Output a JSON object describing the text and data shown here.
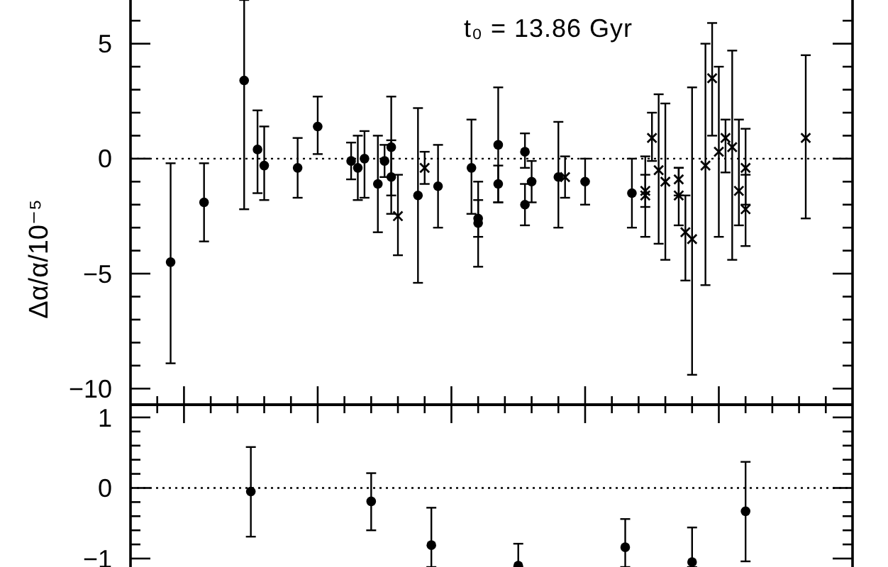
{
  "chart_data": [
    {
      "type": "scatter",
      "ylabel": "Δα/α/10⁻⁵",
      "annotations": [
        "t₀ = 13.86 Gyr"
      ],
      "tick_labels": "y",
      "categories": [
        null,
        null,
        null,
        null,
        null,
        null,
        null,
        null,
        null,
        null,
        null,
        null,
        null,
        null,
        null,
        null,
        null,
        null,
        null,
        null,
        null,
        null,
        null,
        null,
        null,
        null,
        null,
        null,
        null,
        null,
        null,
        null,
        null,
        null,
        null,
        null,
        null,
        null,
        null,
        null,
        null,
        null,
        null,
        null,
        null,
        null,
        null,
        null,
        null,
        null,
        null,
        null,
        null,
        null,
        null,
        null,
        null,
        null,
        null,
        null,
        null,
        null,
        null,
        null,
        null,
        null,
        null,
        null,
        null,
        null,
        null,
        null,
        null,
        null,
        null,
        null,
        null,
        null,
        null,
        null,
        null,
        null,
        null,
        null,
        null,
        null,
        null,
        null,
        null,
        null,
        null,
        null,
        null,
        null,
        null,
        null,
        null,
        null,
        null,
        null,
        null,
        null,
        null,
        null,
        null,
        null,
        null,
        null,
        null
      ],
      "ylim": [
        -10.7,
        6.9
      ],
      "yticks": [
        -10,
        {
          "value": -9,
          "label": null
        },
        {
          "value": -8,
          "label": null
        },
        {
          "value": -7,
          "label": null
        },
        {
          "value": -6,
          "label": null
        },
        -5,
        {
          "value": -4,
          "label": null
        },
        {
          "value": -3,
          "label": null
        },
        {
          "value": -2,
          "label": null
        },
        {
          "value": -1,
          "label": null
        },
        0,
        {
          "value": 1,
          "label": null
        },
        {
          "value": 2,
          "label": null
        },
        {
          "value": 3,
          "label": null
        },
        {
          "value": 4,
          "label": null
        },
        5,
        {
          "value": 6,
          "label": null
        }
      ],
      "ref_lines": [
        {
          "axis": "y",
          "value": 0,
          "line_style": "dotted"
        }
      ],
      "series": [
        {
          "color": "#000000",
          "marker": "circle",
          "values": [
            null,
            null,
            null,
            null,
            null,
            null,
            -4.5,
            null,
            null,
            null,
            null,
            -1.9,
            null,
            null,
            null,
            null,
            null,
            3.4,
            null,
            0.4,
            -0.3,
            null,
            null,
            null,
            null,
            -0.4,
            null,
            null,
            1.4,
            null,
            null,
            null,
            null,
            -0.1,
            -0.4,
            0.0,
            null,
            -1.1,
            -0.1,
            -0.8,
            null,
            null,
            null,
            -1.6,
            null,
            null,
            -1.2,
            null,
            null,
            null,
            null,
            -0.4,
            -2.8,
            null,
            null,
            0.6,
            null,
            null,
            null,
            0.3,
            -1.0,
            null,
            null,
            null,
            -0.8,
            null,
            null,
            null,
            -1.0,
            null,
            null,
            null,
            null,
            null,
            null,
            -1.5,
            null,
            null,
            null,
            null,
            null,
            null,
            null,
            null,
            null,
            null,
            null,
            null,
            null,
            null,
            null,
            null,
            null,
            null,
            null,
            null,
            null,
            null,
            null,
            null,
            null,
            null,
            null,
            null,
            null,
            null,
            null,
            null,
            null
          ],
          "errors": [
            null,
            null,
            null,
            null,
            null,
            null,
            [
              -8.9,
              -0.2
            ],
            null,
            null,
            null,
            null,
            [
              -3.6,
              -0.2
            ],
            null,
            null,
            null,
            null,
            null,
            [
              -2.2,
              6.9
            ],
            null,
            [
              -1.5,
              2.1
            ],
            [
              -1.8,
              1.4
            ],
            null,
            null,
            null,
            null,
            [
              -1.7,
              0.9
            ],
            null,
            null,
            [
              0.2,
              2.7
            ],
            null,
            null,
            null,
            null,
            [
              -0.9,
              0.7
            ],
            [
              -1.8,
              1.0
            ],
            [
              -1.7,
              1.2
            ],
            null,
            [
              -3.2,
              1.0
            ],
            [
              -0.8,
              0.6
            ],
            [
              -2.4,
              0.8
            ],
            null,
            null,
            null,
            [
              -5.4,
              2.2
            ],
            null,
            null,
            [
              -3.0,
              0.6
            ],
            null,
            null,
            null,
            null,
            [
              -2.4,
              1.7
            ],
            [
              -4.7,
              -1.0
            ],
            null,
            null,
            [
              -1.9,
              3.1
            ],
            null,
            null,
            null,
            [
              -0.4,
              1.1
            ],
            [
              -1.9,
              -0.1
            ],
            null,
            null,
            null,
            [
              -3.0,
              1.6
            ],
            null,
            null,
            null,
            [
              -2.0,
              0.0
            ],
            null,
            null,
            null,
            null,
            null,
            null,
            [
              -3.0,
              0.0
            ],
            null,
            null,
            null,
            null,
            null,
            null,
            null,
            null,
            null,
            null,
            null,
            null,
            null,
            null,
            null,
            null,
            null,
            null,
            null,
            null,
            null,
            null,
            null,
            null,
            null,
            null,
            null,
            null,
            null,
            null,
            null,
            null,
            null
          ]
        },
        {
          "color": "#000000",
          "marker": "circle",
          "values": [
            null,
            null,
            null,
            null,
            null,
            null,
            null,
            null,
            null,
            null,
            null,
            null,
            null,
            null,
            null,
            null,
            null,
            null,
            null,
            null,
            null,
            null,
            null,
            null,
            null,
            null,
            null,
            null,
            null,
            null,
            null,
            null,
            null,
            null,
            null,
            null,
            null,
            null,
            null,
            0.5,
            null,
            null,
            null,
            null,
            null,
            null,
            null,
            null,
            null,
            null,
            null,
            null,
            -2.6,
            null,
            null,
            -1.1,
            null,
            null,
            null,
            -2.0,
            null,
            null,
            null,
            null,
            null,
            null,
            null,
            null,
            null,
            null,
            null,
            null,
            null,
            null,
            null,
            null,
            null,
            null,
            null,
            null,
            null,
            null,
            null,
            null,
            null,
            null,
            null,
            null,
            null,
            null,
            null,
            null,
            null,
            null,
            null,
            null,
            null,
            null,
            null,
            null,
            null,
            null,
            null,
            null,
            null,
            null,
            null,
            null,
            null
          ],
          "errors": [
            null,
            null,
            null,
            null,
            null,
            null,
            null,
            null,
            null,
            null,
            null,
            null,
            null,
            null,
            null,
            null,
            null,
            null,
            null,
            null,
            null,
            null,
            null,
            null,
            null,
            null,
            null,
            null,
            null,
            null,
            null,
            null,
            null,
            null,
            null,
            null,
            null,
            null,
            null,
            [
              -1.6,
              2.7
            ],
            null,
            null,
            null,
            null,
            null,
            null,
            null,
            null,
            null,
            null,
            null,
            null,
            [
              -3.4,
              -1.8
            ],
            null,
            null,
            [
              -1.9,
              -0.3
            ],
            null,
            null,
            null,
            [
              -2.9,
              -1.1
            ],
            null,
            null,
            null,
            null,
            null,
            null,
            null,
            null,
            null,
            null,
            null,
            null,
            null,
            null,
            null,
            null,
            null,
            null,
            null,
            null,
            null,
            null,
            null,
            null,
            null,
            null,
            null,
            null,
            null,
            null,
            null,
            null,
            null,
            null,
            null,
            null,
            null,
            null,
            null,
            null,
            null,
            null,
            null,
            null,
            null,
            null,
            null,
            null,
            null
          ]
        },
        {
          "color": "#000000",
          "marker": "cross",
          "values": [
            null,
            null,
            null,
            null,
            null,
            null,
            null,
            null,
            null,
            null,
            null,
            null,
            null,
            null,
            null,
            null,
            null,
            null,
            null,
            null,
            null,
            null,
            null,
            null,
            null,
            null,
            null,
            null,
            null,
            null,
            null,
            null,
            null,
            null,
            null,
            null,
            null,
            null,
            null,
            null,
            -2.5,
            null,
            null,
            null,
            -0.4,
            null,
            null,
            null,
            null,
            null,
            null,
            null,
            null,
            null,
            null,
            null,
            null,
            null,
            null,
            null,
            null,
            null,
            null,
            null,
            null,
            -0.8,
            null,
            null,
            null,
            null,
            null,
            null,
            null,
            null,
            null,
            null,
            null,
            -1.4,
            0.9,
            -0.5,
            -1.0,
            null,
            -1.6,
            -3.2,
            null,
            null,
            -0.3,
            3.5,
            0.3,
            0.9,
            null,
            null,
            -0.4,
            null,
            null,
            null,
            null,
            null,
            null,
            null,
            null,
            0.9,
            null,
            null,
            null,
            null,
            null,
            null,
            null
          ],
          "errors": [
            null,
            null,
            null,
            null,
            null,
            null,
            null,
            null,
            null,
            null,
            null,
            null,
            null,
            null,
            null,
            null,
            null,
            null,
            null,
            null,
            null,
            null,
            null,
            null,
            null,
            null,
            null,
            null,
            null,
            null,
            null,
            null,
            null,
            null,
            null,
            null,
            null,
            null,
            null,
            null,
            [
              -4.2,
              -0.7
            ],
            null,
            null,
            null,
            [
              -1.1,
              0.3
            ],
            null,
            null,
            null,
            null,
            null,
            null,
            null,
            null,
            null,
            null,
            null,
            null,
            null,
            null,
            null,
            null,
            null,
            null,
            null,
            null,
            [
              -1.7,
              0.1
            ],
            null,
            null,
            null,
            null,
            null,
            null,
            null,
            null,
            null,
            null,
            null,
            [
              -3.4,
              0.1
            ],
            [
              -0.1,
              2.0
            ],
            [
              -3.7,
              2.8
            ],
            [
              -4.4,
              2.4
            ],
            null,
            [
              -2.9,
              -0.4
            ],
            [
              -5.3,
              -1.6
            ],
            null,
            null,
            [
              -5.5,
              5.0
            ],
            [
              1.0,
              5.9
            ],
            [
              -3.4,
              4.0
            ],
            [
              -0.6,
              1.7
            ],
            null,
            null,
            [
              -2.0,
              1.3
            ],
            null,
            null,
            null,
            null,
            null,
            null,
            null,
            null,
            [
              -2.6,
              4.5
            ],
            null,
            null,
            null,
            null,
            null,
            null,
            null
          ]
        },
        {
          "color": "#000000",
          "marker": "cross",
          "values": [
            null,
            null,
            null,
            null,
            null,
            null,
            null,
            null,
            null,
            null,
            null,
            null,
            null,
            null,
            null,
            null,
            null,
            null,
            null,
            null,
            null,
            null,
            null,
            null,
            null,
            null,
            null,
            null,
            null,
            null,
            null,
            null,
            null,
            null,
            null,
            null,
            null,
            null,
            null,
            null,
            null,
            null,
            null,
            null,
            null,
            null,
            null,
            null,
            null,
            null,
            null,
            null,
            null,
            null,
            null,
            null,
            null,
            null,
            null,
            null,
            null,
            null,
            null,
            null,
            null,
            null,
            null,
            null,
            null,
            null,
            null,
            null,
            null,
            null,
            null,
            null,
            null,
            -1.6,
            null,
            null,
            null,
            null,
            -0.9,
            null,
            -3.5,
            null,
            null,
            null,
            null,
            null,
            0.5,
            -1.4,
            -2.2,
            null,
            null,
            null,
            null,
            null,
            null,
            null,
            null,
            null,
            null,
            null,
            null,
            null,
            null,
            null,
            null
          ],
          "errors": [
            null,
            null,
            null,
            null,
            null,
            null,
            null,
            null,
            null,
            null,
            null,
            null,
            null,
            null,
            null,
            null,
            null,
            null,
            null,
            null,
            null,
            null,
            null,
            null,
            null,
            null,
            null,
            null,
            null,
            null,
            null,
            null,
            null,
            null,
            null,
            null,
            null,
            null,
            null,
            null,
            null,
            null,
            null,
            null,
            null,
            null,
            null,
            null,
            null,
            null,
            null,
            null,
            null,
            null,
            null,
            null,
            null,
            null,
            null,
            null,
            null,
            null,
            null,
            null,
            null,
            null,
            null,
            null,
            null,
            null,
            null,
            null,
            null,
            null,
            null,
            null,
            null,
            [
              -2.1,
              -0.7
            ],
            null,
            null,
            null,
            null,
            [
              -1.6,
              -0.4
            ],
            null,
            [
              -9.4,
              3.1
            ],
            null,
            null,
            null,
            null,
            null,
            [
              -4.4,
              4.7
            ],
            [
              -2.9,
              1.7
            ],
            [
              -3.8,
              -0.7
            ],
            null,
            null,
            null,
            null,
            null,
            null,
            null,
            null,
            null,
            null,
            null,
            null,
            null,
            null,
            null,
            null
          ]
        }
      ]
    },
    {
      "type": "scatter",
      "tick_labels": "y",
      "categories": [
        null,
        null,
        null,
        null,
        null,
        null,
        null,
        null,
        null,
        null,
        null,
        null,
        null,
        null,
        null,
        null,
        null,
        null,
        null,
        null,
        null,
        null,
        null,
        null,
        null,
        null,
        null,
        null,
        null,
        null,
        null,
        null,
        null,
        null,
        null,
        null,
        null,
        null,
        null,
        null,
        null,
        null,
        null,
        null,
        null,
        null,
        null,
        null,
        null,
        null,
        null,
        null,
        null,
        null,
        null,
        null,
        null,
        null,
        null,
        null,
        null,
        null,
        null,
        null,
        null,
        null,
        null,
        null,
        null,
        null,
        null,
        null,
        null,
        null,
        null,
        null,
        null,
        null,
        null,
        null,
        null,
        null,
        null,
        null,
        null,
        null,
        null,
        null,
        null,
        null,
        null,
        null,
        null,
        null,
        null,
        null,
        null,
        null,
        null,
        null,
        null,
        null,
        null,
        null,
        null,
        null,
        null,
        null,
        null
      ],
      "ylim": [
        -1.12,
        1.18
      ],
      "yticks": [
        -1,
        {
          "value": -0.8,
          "label": null
        },
        {
          "value": -0.6,
          "label": null
        },
        {
          "value": -0.4,
          "label": null
        },
        {
          "value": -0.2,
          "label": null
        },
        0,
        {
          "value": 0.2,
          "label": null
        },
        {
          "value": 0.4,
          "label": null
        },
        {
          "value": 0.6,
          "label": null
        },
        {
          "value": 0.8,
          "label": null
        },
        1
      ],
      "ref_lines": [
        {
          "axis": "y",
          "value": 0,
          "line_style": "dotted"
        }
      ],
      "series": [
        {
          "color": "#000000",
          "marker": "circle",
          "values": [
            null,
            null,
            null,
            null,
            null,
            null,
            null,
            null,
            null,
            null,
            null,
            null,
            null,
            null,
            null,
            null,
            null,
            null,
            -0.05,
            null,
            null,
            null,
            null,
            null,
            null,
            null,
            null,
            null,
            null,
            null,
            null,
            null,
            null,
            null,
            null,
            null,
            -0.19,
            null,
            null,
            null,
            null,
            null,
            null,
            null,
            null,
            -0.81,
            null,
            null,
            null,
            null,
            null,
            null,
            null,
            null,
            null,
            null,
            null,
            null,
            -1.1,
            null,
            null,
            null,
            null,
            null,
            null,
            null,
            null,
            null,
            null,
            null,
            null,
            null,
            null,
            null,
            -0.84,
            null,
            null,
            null,
            null,
            null,
            null,
            null,
            null,
            null,
            -1.05,
            null,
            null,
            null,
            null,
            null,
            null,
            null,
            -0.33,
            null,
            null,
            null,
            null,
            null,
            null,
            null,
            null,
            null,
            null,
            null,
            null,
            null,
            null,
            null,
            null
          ],
          "errors": [
            null,
            null,
            null,
            null,
            null,
            null,
            null,
            null,
            null,
            null,
            null,
            null,
            null,
            null,
            null,
            null,
            null,
            null,
            [
              -0.69,
              0.58
            ],
            null,
            null,
            null,
            null,
            null,
            null,
            null,
            null,
            null,
            null,
            null,
            null,
            null,
            null,
            null,
            null,
            null,
            [
              -0.6,
              0.21
            ],
            null,
            null,
            null,
            null,
            null,
            null,
            null,
            null,
            [
              -1.12,
              -0.28
            ],
            null,
            null,
            null,
            null,
            null,
            null,
            null,
            null,
            null,
            null,
            null,
            null,
            [
              -1.12,
              -0.79
            ],
            null,
            null,
            null,
            null,
            null,
            null,
            null,
            null,
            null,
            null,
            null,
            null,
            null,
            null,
            null,
            [
              -1.12,
              -0.44
            ],
            null,
            null,
            null,
            null,
            null,
            null,
            null,
            null,
            null,
            [
              -1.12,
              -0.56
            ],
            null,
            null,
            null,
            null,
            null,
            null,
            null,
            [
              -1.04,
              0.37
            ],
            null,
            null,
            null,
            null,
            null,
            null,
            null,
            null,
            null,
            null,
            null,
            null,
            null,
            null,
            null,
            null
          ]
        }
      ]
    }
  ]
}
